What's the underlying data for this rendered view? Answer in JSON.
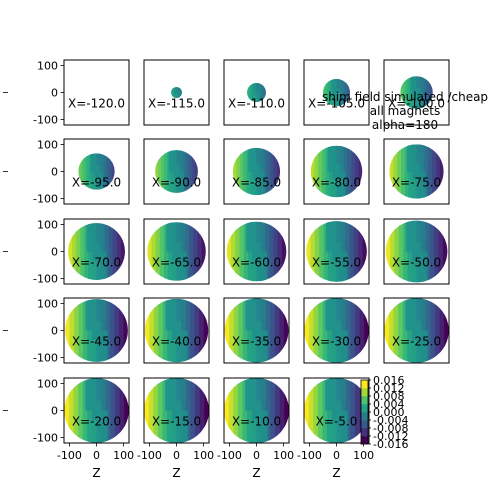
{
  "chart_data": {
    "type": "heatmap",
    "title": "shim field simulated /cheap\nall magnets\nalpha=180",
    "panel_label_prefix": "X=",
    "x_values": [
      -120.0,
      -115.0,
      -110.0,
      -105.0,
      -100.0,
      -95.0,
      -90.0,
      -85.0,
      -80.0,
      -75.0,
      -70.0,
      -65.0,
      -60.0,
      -55.0,
      -50.0,
      -45.0,
      -40.0,
      -35.0,
      -30.0,
      -25.0,
      -20.0,
      -15.0,
      -10.0,
      -5.0
    ],
    "panel_labels": [
      "X=-120.0",
      "X=-115.0",
      "X=-110.0",
      "X=-105.0",
      "X=-100.0",
      "X=-95.0",
      "X=-90.0",
      "X=-85.0",
      "X=-80.0",
      "X=-75.0",
      "X=-70.0",
      "X=-65.0",
      "X=-60.0",
      "X=-55.0",
      "X=-50.0",
      "X=-45.0",
      "X=-40.0",
      "X=-35.0",
      "X=-30.0",
      "X=-25.0",
      "X=-20.0",
      "X=-15.0",
      "X=-10.0",
      "X=-5.0"
    ],
    "disk_radius_mm": [
      0,
      20,
      35,
      50,
      60,
      67,
      79,
      87,
      95,
      100,
      105,
      108,
      110,
      112,
      114,
      116,
      117,
      118,
      119,
      119,
      119,
      120,
      120,
      120
    ],
    "layout": {
      "rows": 5,
      "cols": 5,
      "last_cell": "colorbar"
    },
    "xlabel": "Z",
    "ylabel": "",
    "xlim": [
      -120,
      120
    ],
    "ylim": [
      -120,
      120
    ],
    "x_ticks": [
      "-100",
      "0",
      "100"
    ],
    "y_ticks": [
      "100",
      "0",
      "-100"
    ],
    "colorbar": {
      "ticks": [
        "0.016",
        "0.012",
        "0.008",
        "0.004",
        "0.000",
        "-0.004",
        "-0.008",
        "-0.012",
        "-0.016"
      ],
      "levels": [
        -0.016,
        -0.012,
        -0.008,
        -0.004,
        0.0,
        0.004,
        0.008,
        0.012,
        0.016
      ],
      "colormap": "viridis"
    },
    "grid": false,
    "colors": {
      "low": "#440154",
      "mid": "#21918c",
      "high": "#fde725"
    }
  }
}
